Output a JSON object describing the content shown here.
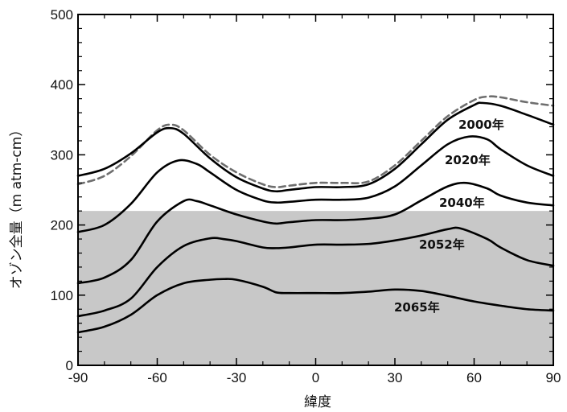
{
  "chart_data": {
    "type": "line",
    "title": "",
    "xlabel": "緯度",
    "ylabel": "オゾン全量（m atm-cm）",
    "xlim": [
      -90,
      90
    ],
    "ylim": [
      0,
      500
    ],
    "xticks": [
      -90,
      -60,
      -30,
      0,
      30,
      60,
      90
    ],
    "yticks": [
      0,
      100,
      200,
      300,
      400,
      500
    ],
    "x_tick_labels": [
      "-90",
      "-60",
      "-30",
      "0",
      "30",
      "60",
      "90"
    ],
    "y_tick_labels": [
      "0",
      "100",
      "200",
      "300",
      "400",
      "500"
    ],
    "grid": false,
    "legend": "none (series labeled inline)",
    "shaded_region": {
      "y_from": 0,
      "y_to": 220,
      "color": "#c8c8c8"
    },
    "colors": {
      "line": "#000000",
      "reference_dashed": "#6e6e6e",
      "shade": "#c8c8c8"
    },
    "series": [
      {
        "label": "",
        "style": "dashed",
        "x": [
          -90,
          -80,
          -70,
          -60,
          -55,
          -50,
          -40,
          -30,
          -20,
          -15,
          -10,
          0,
          10,
          20,
          30,
          40,
          50,
          60,
          65,
          70,
          80,
          90
        ],
        "values": [
          258,
          270,
          298,
          335,
          343,
          335,
          300,
          275,
          258,
          254,
          256,
          260,
          260,
          262,
          285,
          320,
          355,
          378,
          383,
          382,
          375,
          370
        ]
      },
      {
        "label": "2000年",
        "style": "solid",
        "x": [
          -90,
          -80,
          -70,
          -60,
          -55,
          -50,
          -40,
          -30,
          -20,
          -15,
          -10,
          0,
          10,
          20,
          30,
          40,
          50,
          60,
          63,
          70,
          80,
          90
        ],
        "values": [
          270,
          280,
          302,
          332,
          338,
          330,
          295,
          268,
          252,
          248,
          250,
          254,
          254,
          258,
          280,
          315,
          350,
          371,
          374,
          370,
          357,
          343
        ]
      },
      {
        "label": "2020年",
        "style": "solid",
        "x": [
          -90,
          -80,
          -70,
          -60,
          -52,
          -45,
          -40,
          -30,
          -20,
          -15,
          -10,
          0,
          10,
          20,
          30,
          40,
          50,
          58,
          65,
          70,
          80,
          90
        ],
        "values": [
          190,
          200,
          230,
          275,
          292,
          287,
          275,
          250,
          235,
          232,
          233,
          236,
          236,
          239,
          255,
          285,
          315,
          326,
          322,
          308,
          285,
          270
        ]
      },
      {
        "label": "2040年",
        "style": "solid",
        "x": [
          -90,
          -80,
          -70,
          -60,
          -50,
          -45,
          -40,
          -30,
          -20,
          -15,
          -10,
          0,
          10,
          20,
          30,
          40,
          50,
          57,
          65,
          70,
          80,
          90
        ],
        "values": [
          117,
          125,
          150,
          205,
          234,
          234,
          228,
          215,
          205,
          202,
          204,
          207,
          207,
          209,
          215,
          235,
          255,
          260,
          252,
          242,
          232,
          228
        ]
      },
      {
        "label": "2052年",
        "style": "solid",
        "x": [
          -90,
          -80,
          -70,
          -60,
          -50,
          -40,
          -35,
          -30,
          -20,
          -15,
          -10,
          0,
          10,
          20,
          30,
          40,
          50,
          55,
          65,
          70,
          80,
          90
        ],
        "values": [
          70,
          78,
          95,
          140,
          170,
          181,
          180,
          177,
          168,
          167,
          168,
          172,
          172,
          173,
          178,
          185,
          194,
          195,
          180,
          168,
          150,
          142
        ]
      },
      {
        "label": "2065年",
        "style": "solid",
        "x": [
          -90,
          -80,
          -70,
          -60,
          -50,
          -40,
          -35,
          -30,
          -20,
          -15,
          -10,
          0,
          10,
          20,
          30,
          40,
          50,
          60,
          70,
          80,
          90
        ],
        "values": [
          47,
          55,
          72,
          100,
          117,
          122,
          123,
          122,
          112,
          104,
          103,
          103,
          103,
          105,
          108,
          106,
          99,
          91,
          85,
          80,
          78
        ]
      }
    ]
  }
}
